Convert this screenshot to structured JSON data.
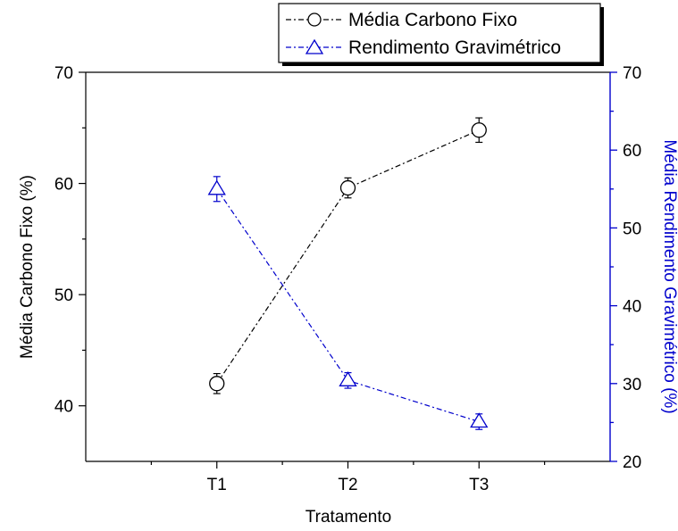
{
  "chart_data": {
    "type": "line",
    "title": "",
    "categories": [
      "T1",
      "T2",
      "T3"
    ],
    "xlabel": "Tratamento",
    "y_left": {
      "label": "Média Carbono Fixo (%)",
      "lim": [
        35,
        70
      ],
      "ticks": [
        "40",
        "50",
        "60",
        "70"
      ],
      "color": "#000000"
    },
    "y_right": {
      "label": "Média Rendimento Gravimétrico (%)",
      "lim": [
        20,
        70
      ],
      "ticks": [
        "20",
        "30",
        "40",
        "50",
        "60",
        "70"
      ],
      "color": "#0000cc"
    },
    "series": [
      {
        "name": "Média Carbono Fixo",
        "axis": "left",
        "marker": "circle",
        "color": "#000000",
        "values": [
          42.0,
          59.6,
          64.8
        ],
        "errors": [
          0.9,
          0.9,
          1.1
        ]
      },
      {
        "name": "Rendimento Gravimétrico",
        "axis": "right",
        "marker": "triangle",
        "color": "#0000cc",
        "values": [
          55.0,
          30.4,
          25.1
        ],
        "errors": [
          1.6,
          1.0,
          1.0
        ]
      }
    ],
    "legend_position": "top-right",
    "grid": false
  }
}
